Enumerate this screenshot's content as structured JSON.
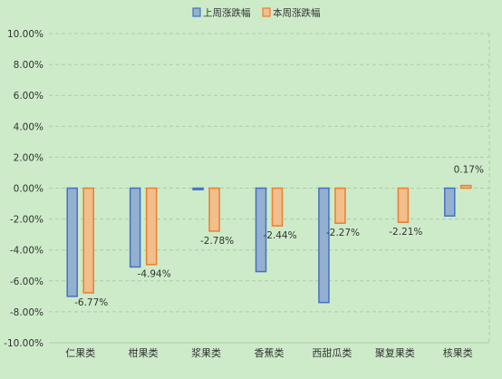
{
  "chart_data": {
    "type": "bar",
    "categories": [
      "仁果类",
      "柑果类",
      "浆果类",
      "香蕉类",
      "西甜瓜类",
      "聚复果类",
      "核果类"
    ],
    "series": [
      {
        "name": "上周涨跌幅",
        "color": "#94b0cf",
        "stroke": "#4472c4",
        "values": [
          -7.0,
          -5.1,
          -0.1,
          -5.4,
          -7.4,
          null,
          -1.8
        ]
      },
      {
        "name": "本周涨跌幅",
        "color": "#f0bf8c",
        "stroke": "#ed7d31",
        "values": [
          -6.77,
          -4.94,
          -2.78,
          -2.44,
          -2.27,
          -2.21,
          0.17
        ]
      }
    ],
    "data_labels": [
      "-6.77%",
      "-4.94%",
      "-2.78%",
      "-2.44%",
      "-2.27%",
      "-2.21%",
      "0.17%"
    ],
    "ylim": [
      -10,
      10
    ],
    "yticks": [
      "10.00%",
      "8.00%",
      "6.00%",
      "4.00%",
      "2.00%",
      "0.00%",
      "-2.00%",
      "-4.00%",
      "-6.00%",
      "-8.00%",
      "-10.00%"
    ],
    "legend_position": "top-center",
    "grid": true
  }
}
